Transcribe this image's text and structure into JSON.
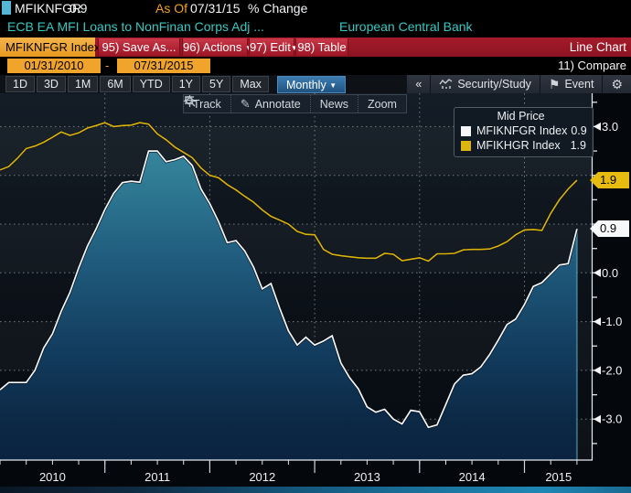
{
  "top_bar": {
    "ticker": "MFIKNFGR",
    "value": "0.9",
    "as_of_label": "As Of",
    "as_of_date": "07/31/15",
    "change_label": "% Change"
  },
  "description_bar": {
    "description": "ECB EA MFI Loans to NonFinan Corps Adj ...",
    "source": "European Central Bank"
  },
  "red_toolbar": {
    "index_tab": "MFIKNFGR Index",
    "save_as": "95) Save As...",
    "actions": "96) Actions",
    "edit": "97) Edit",
    "table": "98) Table",
    "chart_type": "Line Chart"
  },
  "range_bar": {
    "start_date": "01/31/2010",
    "separator": "-",
    "end_date": "07/31/2015",
    "compare": "11) Compare"
  },
  "period_bar": {
    "periods": [
      "1D",
      "3D",
      "1M",
      "6M",
      "YTD",
      "1Y",
      "5Y",
      "Max"
    ],
    "frequency": "Monthly",
    "collapse": "«",
    "security_study": "Security/Study",
    "event": "Event",
    "gear": "⚙"
  },
  "chart_toolbar": {
    "track": "Track",
    "annotate": "Annotate",
    "news": "News",
    "zoom": "Zoom"
  },
  "legend": {
    "title": "Mid Price",
    "series": [
      {
        "label": "MFIKNFGR Index",
        "value": "0.9",
        "color": "#f4f6f7"
      },
      {
        "label": "MFIKHGR Index",
        "value": "1.9",
        "color": "#dcb50e"
      }
    ]
  },
  "axis_badges": [
    {
      "value": "1.9",
      "bg": "#e7bb0f"
    },
    {
      "value": "0.9",
      "bg": "#f6f8f9"
    }
  ],
  "chart_data": {
    "type": "area",
    "title": "ECB EA MFI Loans to NonFinan Corps Adj, % Change, monthly, 01/31/2010-07/31/2015",
    "x_unit": "month",
    "x_start_year": 2010.0,
    "x_end_year": 2015.58,
    "samples_per_year": 12,
    "xticklabels": [
      "2010",
      "2011",
      "2012",
      "2013",
      "2014",
      "2015"
    ],
    "ylim": [
      -3.84,
      3.68
    ],
    "yticks_grid": [
      3,
      2,
      1,
      0,
      -1,
      -2,
      -3
    ],
    "ytick_labels": [
      "3.0",
      "0.0",
      "-1.0",
      "-2.0",
      "-3.0"
    ],
    "legend_position": "top-right",
    "grid": "dotted",
    "series": [
      {
        "name": "MFIKNFGR Index",
        "type": "area",
        "color": "#f4f6f7",
        "fill_top": "#3d8ea6",
        "fill_bottom": "#0a2340",
        "last_value": 0.9,
        "values": [
          -2.4,
          -2.25,
          -2.25,
          -2.25,
          -2.0,
          -1.54,
          -1.25,
          -0.79,
          -0.4,
          0.1,
          0.55,
          0.9,
          1.3,
          1.63,
          1.85,
          1.88,
          1.86,
          2.5,
          2.5,
          2.28,
          2.32,
          2.39,
          2.2,
          1.72,
          1.42,
          1.05,
          0.62,
          0.66,
          0.45,
          0.12,
          -0.33,
          -0.22,
          -0.73,
          -1.19,
          -1.48,
          -1.32,
          -1.48,
          -1.4,
          -1.29,
          -1.85,
          -2.15,
          -2.38,
          -2.75,
          -2.86,
          -2.8,
          -3.0,
          -3.1,
          -2.82,
          -2.85,
          -3.17,
          -3.12,
          -2.7,
          -2.28,
          -2.1,
          -2.07,
          -1.93,
          -1.68,
          -1.38,
          -1.06,
          -0.95,
          -0.65,
          -0.28,
          -0.2,
          -0.02,
          0.16,
          0.19,
          0.9
        ]
      },
      {
        "name": "MFIKHGR Index",
        "type": "line",
        "color": "#d9b410",
        "last_value": 1.9,
        "values": [
          2.11,
          2.18,
          2.35,
          2.55,
          2.6,
          2.68,
          2.78,
          2.89,
          2.82,
          2.87,
          2.97,
          3.02,
          3.08,
          3.0,
          3.02,
          3.03,
          3.08,
          3.05,
          2.85,
          2.73,
          2.58,
          2.47,
          2.36,
          2.15,
          2.0,
          1.95,
          1.81,
          1.7,
          1.57,
          1.45,
          1.29,
          1.16,
          1.08,
          1.0,
          0.85,
          0.79,
          0.78,
          0.48,
          0.38,
          0.35,
          0.33,
          0.31,
          0.3,
          0.3,
          0.4,
          0.38,
          0.25,
          0.28,
          0.31,
          0.24,
          0.39,
          0.39,
          0.4,
          0.47,
          0.48,
          0.48,
          0.49,
          0.55,
          0.64,
          0.78,
          0.88,
          0.89,
          0.87,
          1.22,
          1.5,
          1.72,
          1.9
        ]
      }
    ]
  }
}
